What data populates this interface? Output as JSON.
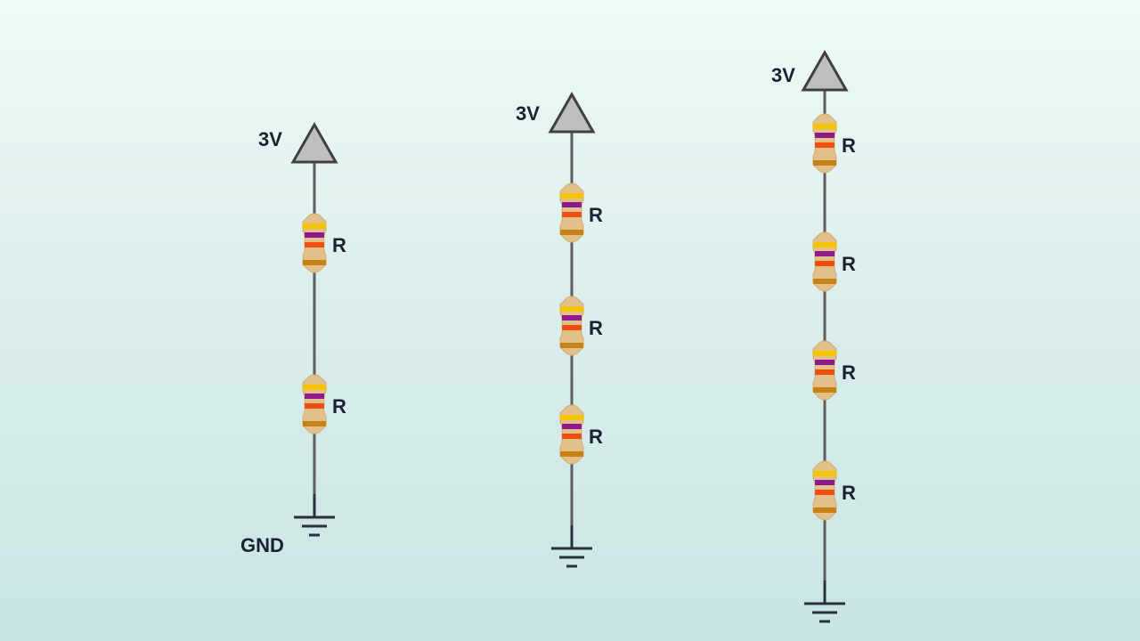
{
  "circuits": [
    {
      "supply_label": "3V",
      "resistor_labels": [
        "R",
        "R"
      ],
      "ground_label": "GND"
    },
    {
      "supply_label": "3V",
      "resistor_labels": [
        "R",
        "R",
        "R"
      ],
      "ground_label": ""
    },
    {
      "supply_label": "3V",
      "resistor_labels": [
        "R",
        "R",
        "R",
        "R"
      ],
      "ground_label": ""
    }
  ],
  "colors": {
    "wire": "#5e5e5e",
    "supply_fill": "#bfbfbf",
    "supply_stroke": "#404040",
    "ground": "#2a2f3d",
    "resistor_body": "#e3c08a",
    "band1": "#f5c400",
    "band2": "#8e1a8c",
    "band3": "#ee4e0f",
    "band4": "#c48314",
    "text": "#1b2133"
  },
  "icons": {
    "supply": "triangle-supply-icon",
    "resistor": "resistor-icon",
    "ground": "ground-icon"
  }
}
